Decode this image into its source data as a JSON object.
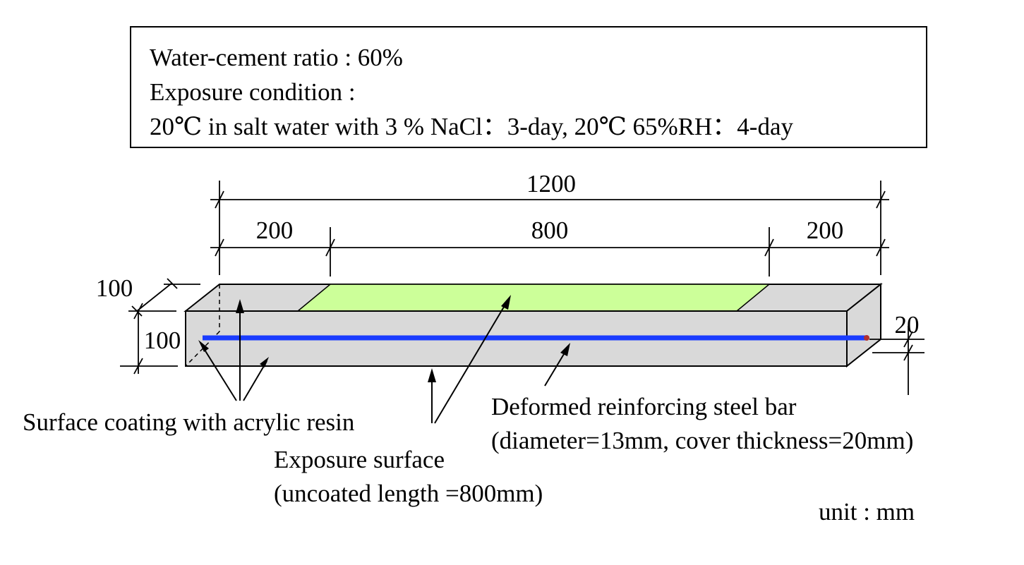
{
  "info": {
    "line1": "Water-cement ratio : 60%",
    "line2": "Exposure condition :",
    "line3": "20℃ in salt water with 3 % NaCl：3-day, 20℃ 65%RH：4-day"
  },
  "dimensions": {
    "total_length": "1200",
    "left_coated": "200",
    "exposed": "800",
    "right_coated": "200",
    "width": "100",
    "height": "100",
    "cover": "20"
  },
  "labels": {
    "coating": "Surface coating with acrylic resin",
    "exposure_line1": "Exposure surface",
    "exposure_line2": "(uncoated length =800mm)",
    "steel_line1": "Deformed reinforcing steel bar",
    "steel_line2": "(diameter=13mm, cover thickness=20mm)",
    "unit": "unit : mm"
  },
  "colors": {
    "beam_face": "#d9d9d9",
    "exposed_surface": "#ccff99",
    "steel_bar": "#1a3cff"
  }
}
